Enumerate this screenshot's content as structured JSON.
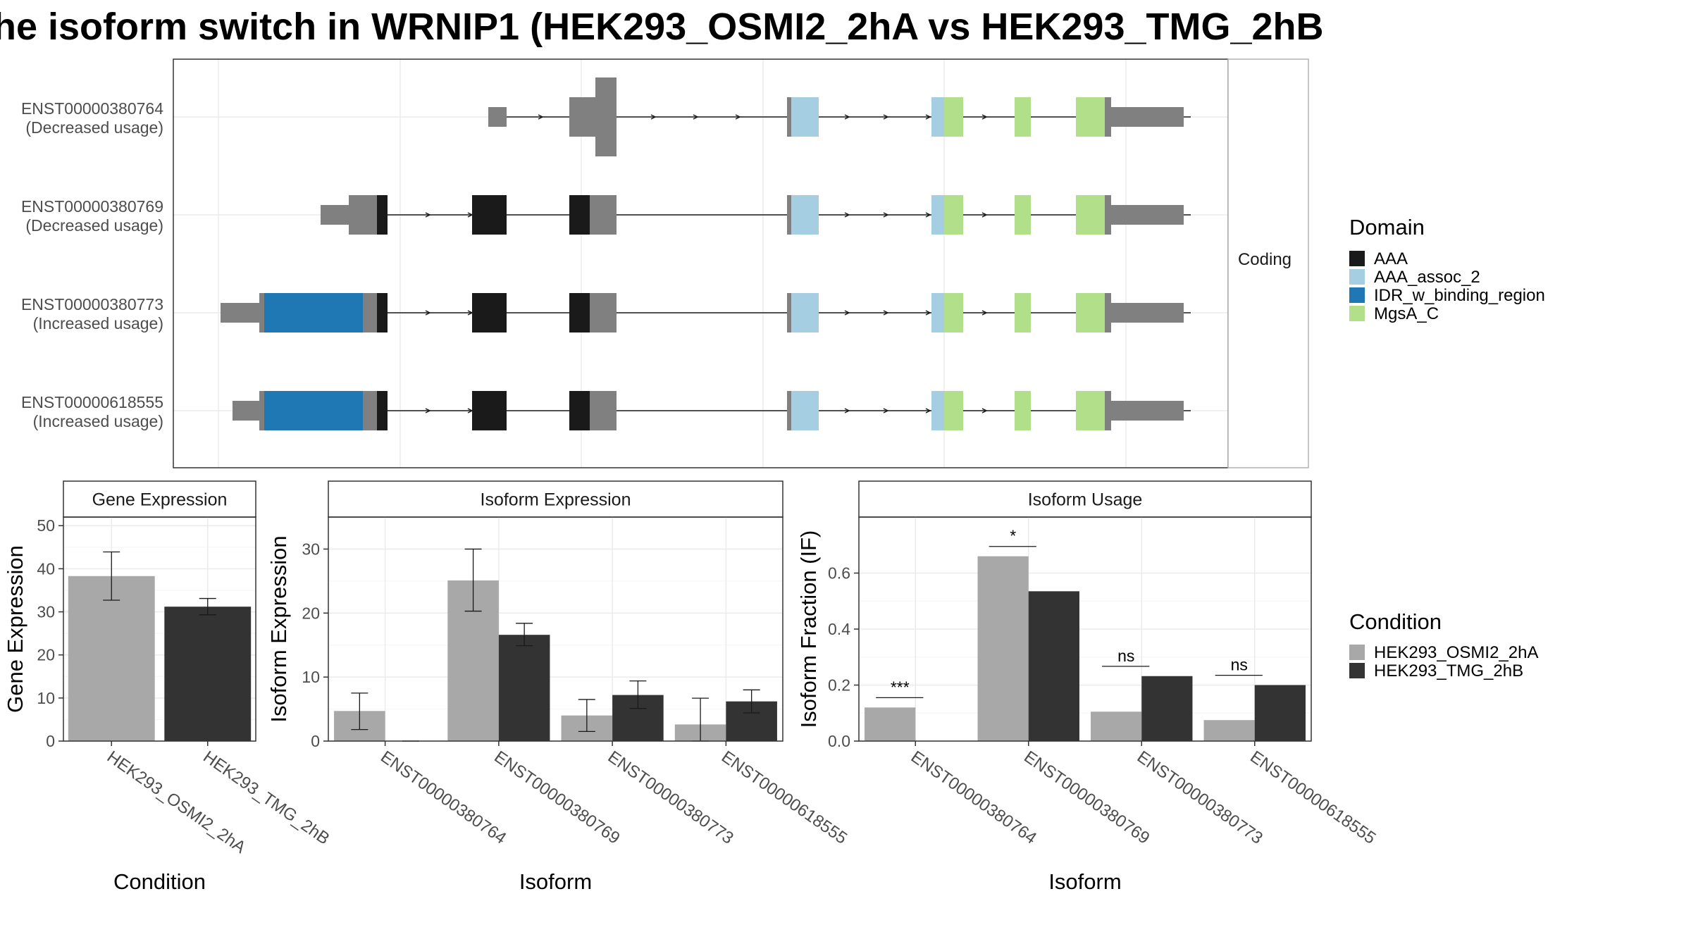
{
  "title": "he isoform switch in WRNIP1 (HEK293_OSMI2_2hA vs HEK293_TMG_2hB",
  "colors": {
    "AAA": "#1a1a1a",
    "AAA_assoc_2": "#a6cee3",
    "IDR_w_binding_region": "#1f78b4",
    "MgsA_C": "#b2df8a",
    "utr": "#808080",
    "cond_a": "#a8a8a8",
    "cond_b": "#333333"
  },
  "transcripts": [
    {
      "id": "ENST00000380764",
      "usage": "(Decreased usage)"
    },
    {
      "id": "ENST00000380769",
      "usage": "(Decreased usage)"
    },
    {
      "id": "ENST00000380773",
      "usage": "(Increased usage)"
    },
    {
      "id": "ENST00000618555",
      "usage": "(Increased usage)"
    }
  ],
  "facet_label": "Coding",
  "domain_legend": {
    "title": "Domain",
    "items": [
      "AAA",
      "AAA_assoc_2",
      "IDR_w_binding_region",
      "MgsA_C"
    ]
  },
  "condition_legend": {
    "title": "Condition",
    "items": [
      "HEK293_OSMI2_2hA",
      "HEK293_TMG_2hB"
    ]
  },
  "chart_data": [
    {
      "type": "bar",
      "title": "Gene Expression",
      "xlabel": "Condition",
      "ylabel": "Gene Expression",
      "ylim": [
        0,
        52
      ],
      "yticks": [
        0,
        10,
        20,
        30,
        40,
        50
      ],
      "categories": [
        "HEK293_OSMI2_2hA",
        "HEK293_TMG_2hB"
      ],
      "series": [
        {
          "values": [
            38.3,
            31.2
          ],
          "error_low": [
            32.7,
            29.3
          ],
          "error_high": [
            43.9,
            33.1
          ]
        }
      ]
    },
    {
      "type": "bar",
      "title": "Isoform Expression",
      "xlabel": "Isoform",
      "ylabel": "Isoform Expression",
      "ylim": [
        0,
        35
      ],
      "yticks": [
        0,
        10,
        20,
        30
      ],
      "categories": [
        "ENST00000380764",
        "ENST00000380769",
        "ENST00000380773",
        "ENST00000618555"
      ],
      "series": [
        {
          "name": "HEK293_OSMI2_2hA",
          "values": [
            4.7,
            25.1,
            4.0,
            2.6
          ],
          "error_low": [
            1.8,
            20.3,
            1.5,
            0.0
          ],
          "error_high": [
            7.5,
            30.0,
            6.5,
            6.7
          ]
        },
        {
          "name": "HEK293_TMG_2hB",
          "values": [
            0.0,
            16.6,
            7.2,
            6.2
          ],
          "error_low": [
            0.0,
            14.9,
            5.1,
            4.4
          ],
          "error_high": [
            0.0,
            18.4,
            9.4,
            8.0
          ]
        }
      ]
    },
    {
      "type": "bar",
      "title": "Isoform Usage",
      "xlabel": "Isoform",
      "ylabel": "Isoform Fraction (IF)",
      "ylim": [
        0,
        0.8
      ],
      "yticks": [
        "0.0",
        "0.2",
        "0.4",
        "0.6"
      ],
      "categories": [
        "ENST00000380764",
        "ENST00000380769",
        "ENST00000380773",
        "ENST00000618555"
      ],
      "series": [
        {
          "name": "HEK293_OSMI2_2hA",
          "values": [
            0.12,
            0.66,
            0.105,
            0.075
          ]
        },
        {
          "name": "HEK293_TMG_2hB",
          "values": [
            0.0,
            0.535,
            0.232,
            0.2
          ]
        }
      ],
      "significance": [
        "***",
        "*",
        "ns",
        "ns"
      ]
    }
  ]
}
